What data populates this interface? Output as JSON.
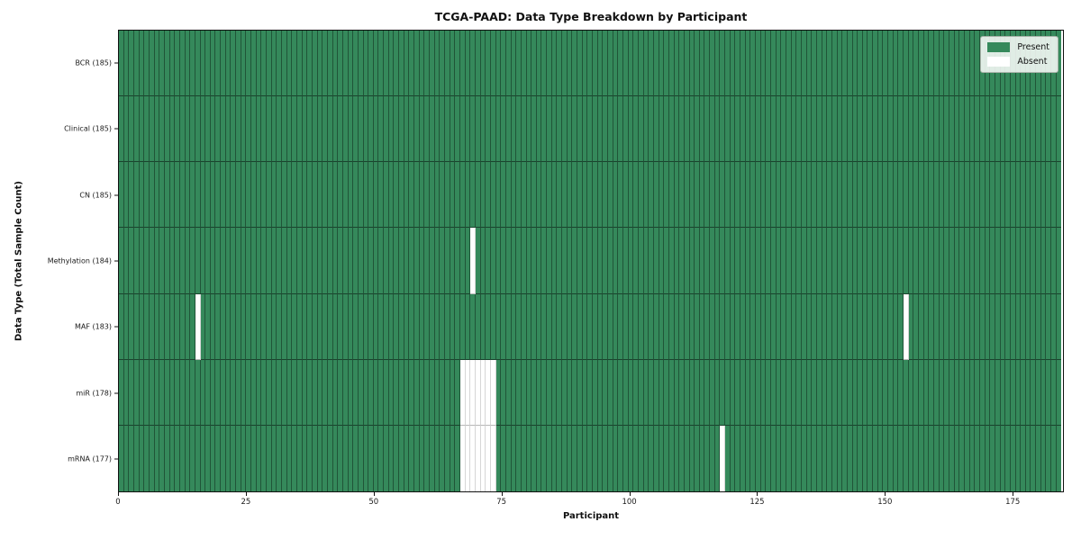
{
  "figure": {
    "title": "TCGA-PAAD: Data Type Breakdown by Participant",
    "xlabel": "Participant",
    "ylabel": "Data Type (Total Sample Count)"
  },
  "legend": {
    "items": [
      {
        "label": "Present",
        "swatch": "present-color-swatch",
        "color": "#35895b"
      },
      {
        "label": "Absent",
        "swatch": "absent-color-swatch",
        "color": "#ffffff"
      }
    ]
  },
  "chart_data": {
    "type": "heatmap",
    "title": "TCGA-PAAD: Data Type Breakdown by Participant",
    "xlabel": "Participant",
    "ylabel": "Data Type (Total Sample Count)",
    "xlim": [
      0,
      185
    ],
    "x_ticks": [
      0,
      25,
      50,
      75,
      100,
      125,
      150,
      175
    ],
    "n_participants": 185,
    "colors": {
      "present": "#35895b",
      "absent": "#ffffff"
    },
    "legend_position": "upper right",
    "legend_entries": [
      "Present",
      "Absent"
    ],
    "rows": [
      {
        "label": "BCR (185)",
        "data_type": "BCR",
        "present_count": 185,
        "absent_count": 0,
        "absent_participants": []
      },
      {
        "label": "Clinical (185)",
        "data_type": "Clinical",
        "present_count": 185,
        "absent_count": 0,
        "absent_participants": []
      },
      {
        "label": "CN (185)",
        "data_type": "CN",
        "present_count": 185,
        "absent_count": 0,
        "absent_participants": []
      },
      {
        "label": "Methylation (184)",
        "data_type": "Methylation",
        "present_count": 184,
        "absent_count": 1,
        "absent_participants": [
          69
        ]
      },
      {
        "label": "MAF (183)",
        "data_type": "MAF",
        "present_count": 183,
        "absent_count": 2,
        "absent_participants": [
          15,
          154
        ]
      },
      {
        "label": "miR (178)",
        "data_type": "miR",
        "present_count": 178,
        "absent_count": 7,
        "absent_participants": [
          67,
          68,
          69,
          70,
          71,
          72,
          73
        ]
      },
      {
        "label": "mRNA (177)",
        "data_type": "mRNA",
        "present_count": 177,
        "absent_count": 8,
        "absent_participants": [
          67,
          68,
          69,
          70,
          71,
          72,
          73,
          118
        ]
      }
    ]
  }
}
